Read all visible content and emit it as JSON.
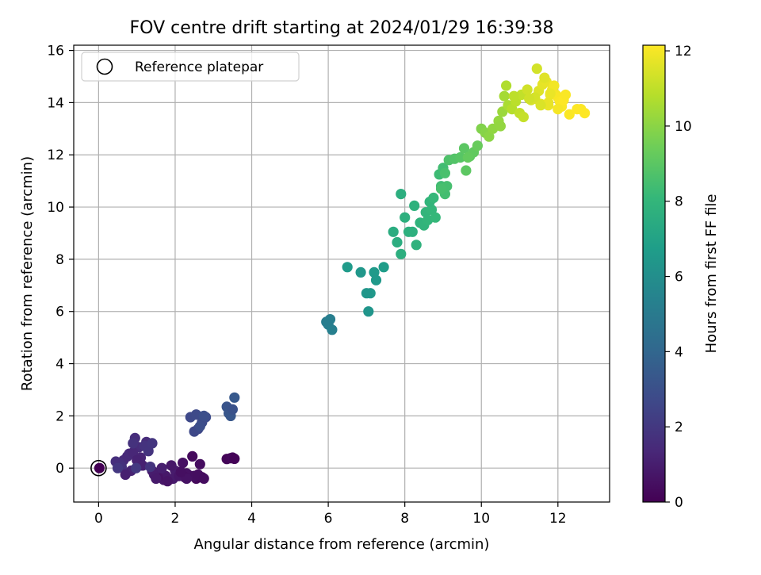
{
  "chart_data": {
    "type": "scatter",
    "title": "FOV centre drift starting at 2024/01/29 16:39:38",
    "xlabel": "Angular distance from reference (arcmin)",
    "ylabel": "Rotation from reference (arcmin)",
    "xlim": [
      -0.65,
      13.35
    ],
    "ylim": [
      -1.3,
      16.2
    ],
    "xticks": [
      0,
      2,
      4,
      6,
      8,
      10,
      12
    ],
    "yticks": [
      0,
      2,
      4,
      6,
      8,
      10,
      12,
      14,
      16
    ],
    "grid": true,
    "legend": {
      "position": "top-left",
      "entries": [
        "Reference platepar"
      ]
    },
    "reference_point": {
      "x": 0,
      "y": 0
    },
    "colorbar": {
      "label": "Hours from first FF file",
      "colormap": "viridis",
      "range": [
        0,
        12.15
      ],
      "ticks": [
        0,
        2,
        4,
        6,
        8,
        10,
        12
      ]
    },
    "colormap_stops": [
      "#440154",
      "#482878",
      "#3e4989",
      "#31688e",
      "#26828e",
      "#1f9e89",
      "#35b779",
      "#6ece58",
      "#b5de2b",
      "#fde725"
    ],
    "series": [
      {
        "x": [
          0.02,
          2.4,
          2.55,
          2.7,
          3.35,
          3.45,
          3.5,
          3.55,
          2.3,
          2.5,
          2.6,
          2.75,
          2.25,
          2.45,
          2.65,
          1.6,
          1.7,
          1.75,
          1.95,
          2.0,
          1.8,
          1.55,
          1.45,
          1.4,
          1.65,
          1.5,
          1.9,
          2.1,
          2.3,
          2.2,
          2.15,
          1.05,
          1.25,
          0.95,
          0.75,
          0.65,
          0.8,
          0.9,
          1.1,
          0.55,
          0.45,
          0.6,
          0.85,
          1.0,
          1.15,
          0.9,
          1.2,
          1.3,
          1.4,
          0.7,
          0.5,
          0.98,
          1.35,
          2.4,
          2.55,
          2.7,
          2.8,
          2.6,
          2.5,
          2.65,
          2.75,
          3.35,
          3.4,
          3.45,
          3.5,
          3.55,
          5.95,
          6.05,
          6.0,
          6.1,
          6.5,
          6.85,
          7.05,
          7.1,
          7.2,
          7.25,
          7.45,
          7.0,
          7.7,
          7.8,
          7.9,
          8.0,
          8.1,
          8.25,
          8.3,
          8.4,
          8.5,
          8.55,
          8.6,
          8.7,
          8.8,
          7.9,
          8.2,
          8.65,
          8.75,
          8.9,
          8.95,
          9.0,
          9.05,
          9.1,
          8.95,
          9.05,
          9.15,
          9.3,
          9.45,
          9.55,
          9.6,
          9.7,
          9.8,
          9.9,
          9.65,
          10.0,
          10.1,
          10.2,
          10.3,
          10.45,
          10.55,
          10.6,
          10.7,
          10.5,
          10.65,
          10.8,
          10.9,
          11.0,
          11.1,
          11.05,
          10.85,
          11.2,
          11.3,
          11.4,
          11.5,
          11.55,
          11.6,
          11.7,
          11.75,
          11.8,
          11.85,
          11.9,
          11.95,
          12.0,
          12.05,
          12.1,
          12.15,
          11.45,
          11.65,
          11.75,
          12.2,
          12.3,
          12.5,
          12.6,
          12.7,
          11.4,
          11.55,
          11.8,
          11.25,
          12.0
        ],
        "y": [
          0.0,
          -0.3,
          -0.4,
          -0.35,
          0.35,
          0.38,
          0.4,
          0.36,
          -0.2,
          -0.3,
          -0.25,
          -0.4,
          -0.35,
          0.45,
          0.15,
          -0.2,
          -0.45,
          -0.3,
          -0.4,
          -0.1,
          -0.5,
          -0.35,
          -0.25,
          -0.1,
          0.0,
          -0.4,
          0.1,
          -0.3,
          -0.4,
          0.2,
          -0.15,
          0.8,
          1.0,
          1.15,
          0.45,
          0.3,
          0.55,
          0.6,
          0.4,
          0.2,
          0.25,
          0.05,
          -0.1,
          0.3,
          0.1,
          0.95,
          0.85,
          0.65,
          0.95,
          -0.25,
          0.0,
          0.0,
          0.05,
          1.95,
          2.05,
          1.75,
          1.95,
          1.5,
          1.4,
          1.6,
          2.0,
          2.35,
          2.1,
          2.0,
          2.25,
          2.7,
          5.6,
          5.7,
          5.5,
          5.3,
          7.7,
          7.5,
          6.0,
          6.7,
          7.5,
          7.2,
          7.7,
          6.7,
          9.05,
          8.65,
          8.2,
          9.6,
          9.05,
          10.05,
          8.55,
          9.4,
          9.3,
          9.8,
          9.5,
          9.9,
          9.6,
          10.5,
          9.05,
          10.2,
          10.35,
          11.25,
          10.8,
          11.5,
          10.5,
          10.8,
          10.7,
          11.3,
          11.8,
          11.85,
          11.9,
          12.25,
          11.4,
          11.95,
          12.1,
          12.35,
          11.9,
          13.0,
          12.85,
          12.7,
          13.0,
          13.3,
          13.65,
          14.25,
          13.9,
          13.1,
          14.65,
          13.75,
          14.05,
          13.6,
          13.45,
          14.3,
          14.25,
          14.5,
          14.1,
          14.15,
          14.45,
          13.95,
          14.7,
          14.8,
          13.9,
          14.3,
          14.5,
          14.65,
          14.3,
          14.2,
          14.05,
          13.85,
          14.1,
          15.3,
          14.95,
          14.0,
          14.3,
          13.55,
          13.75,
          13.75,
          13.6,
          14.2,
          13.9,
          14.35,
          14.15,
          13.75
        ],
        "c": [
          0.0,
          0.35,
          0.25,
          0.2,
          0.15,
          0.2,
          0.25,
          0.1,
          0.55,
          0.5,
          0.45,
          0.4,
          0.35,
          0.3,
          0.4,
          0.7,
          0.75,
          0.8,
          0.85,
          0.9,
          0.65,
          0.6,
          0.9,
          0.95,
          1.0,
          0.85,
          0.75,
          0.7,
          0.6,
          0.55,
          0.5,
          1.5,
          1.5,
          1.55,
          1.35,
          1.4,
          1.45,
          1.3,
          1.25,
          1.6,
          1.65,
          1.7,
          1.2,
          1.15,
          1.1,
          1.75,
          1.8,
          1.85,
          1.9,
          1.05,
          1.95,
          2.0,
          1.85,
          2.7,
          2.75,
          2.8,
          2.85,
          2.6,
          2.65,
          2.9,
          2.95,
          3.2,
          3.25,
          3.3,
          3.1,
          3.4,
          5.1,
          5.2,
          5.15,
          5.25,
          6.6,
          6.4,
          6.3,
          6.45,
          6.55,
          6.5,
          6.7,
          6.35,
          7.5,
          7.55,
          7.6,
          7.65,
          7.7,
          7.75,
          7.8,
          7.85,
          7.9,
          7.95,
          8.0,
          8.05,
          8.1,
          7.6,
          7.7,
          7.95,
          8.1,
          8.3,
          8.35,
          8.4,
          8.45,
          8.5,
          8.55,
          8.6,
          8.7,
          8.8,
          8.9,
          9.0,
          9.05,
          9.1,
          9.15,
          9.3,
          9.2,
          9.8,
          9.9,
          10.0,
          10.1,
          10.2,
          10.3,
          10.5,
          10.6,
          10.15,
          10.7,
          10.8,
          10.9,
          11.0,
          11.1,
          11.05,
          10.95,
          11.3,
          11.4,
          11.5,
          11.55,
          11.6,
          11.7,
          11.75,
          11.8,
          11.85,
          11.9,
          11.95,
          12.0,
          12.05,
          12.1,
          12.1,
          12.15,
          11.35,
          11.6,
          11.75,
          12.1,
          12.1,
          12.15,
          12.15,
          12.15,
          11.4,
          11.5,
          11.8,
          11.3,
          12.0
        ]
      }
    ]
  }
}
